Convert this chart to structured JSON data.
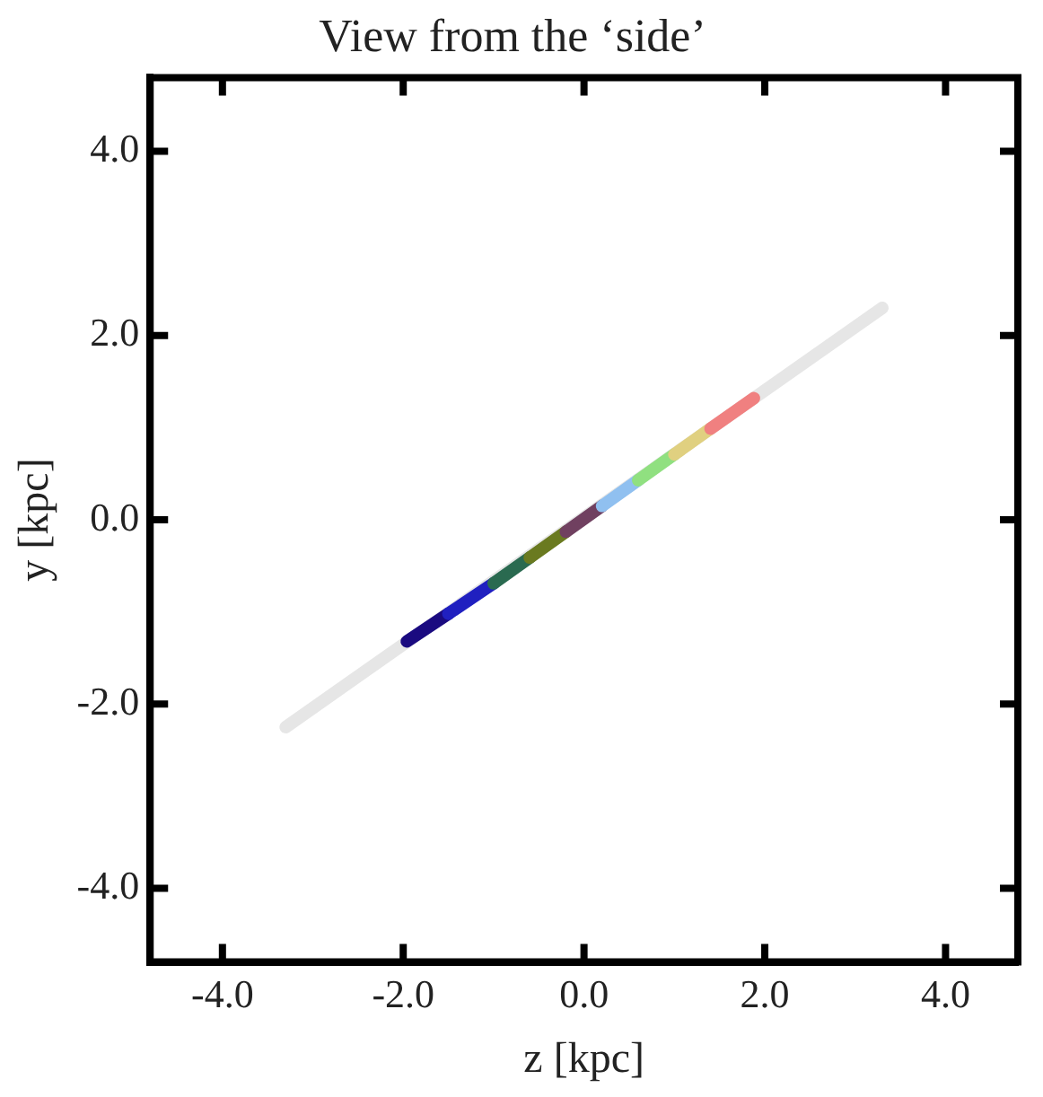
{
  "chart_data": {
    "type": "line",
    "title": "View from the ‘side’",
    "xlabel": "z [kpc]",
    "ylabel": "y [kpc]",
    "xlim": [
      -4.8,
      4.8
    ],
    "ylim": [
      -4.8,
      4.8
    ],
    "xticks": [
      {
        "value": -4,
        "label": "-4.0"
      },
      {
        "value": -2,
        "label": "-2.0"
      },
      {
        "value": 0,
        "label": "0.0"
      },
      {
        "value": 2,
        "label": "2.0"
      },
      {
        "value": 4,
        "label": "4.0"
      }
    ],
    "yticks": [
      {
        "value": -4,
        "label": "-4.0"
      },
      {
        "value": -2,
        "label": "-2.0"
      },
      {
        "value": 0,
        "label": "0.0"
      },
      {
        "value": 2,
        "label": "2.0"
      },
      {
        "value": 4,
        "label": "4.0"
      }
    ],
    "series": [
      {
        "color": "#e6e6e6",
        "x": [
          -3.3,
          3.3
        ],
        "values": [
          -2.25,
          2.3
        ]
      },
      {
        "color": "#1a0a80",
        "x": [
          -1.96,
          -1.5
        ],
        "values": [
          -1.32,
          -1.02
        ]
      },
      {
        "color": "#2020c0",
        "x": [
          -1.5,
          -1.0
        ],
        "values": [
          -1.02,
          -0.69
        ]
      },
      {
        "color": "#2a6a50",
        "x": [
          -1.0,
          -0.6
        ],
        "values": [
          -0.69,
          -0.41
        ]
      },
      {
        "color": "#6a7a20",
        "x": [
          -0.6,
          -0.2
        ],
        "values": [
          -0.41,
          -0.13
        ]
      },
      {
        "color": "#704060",
        "x": [
          -0.2,
          0.2
        ],
        "values": [
          -0.13,
          0.15
        ]
      },
      {
        "color": "#90c0f0",
        "x": [
          0.2,
          0.6
        ],
        "values": [
          0.15,
          0.43
        ]
      },
      {
        "color": "#90e080",
        "x": [
          0.6,
          1.0
        ],
        "values": [
          0.43,
          0.71
        ]
      },
      {
        "color": "#e0d080",
        "x": [
          1.0,
          1.4
        ],
        "values": [
          0.71,
          0.99
        ]
      },
      {
        "color": "#f08080",
        "x": [
          1.4,
          1.88
        ],
        "values": [
          0.99,
          1.32
        ]
      }
    ]
  }
}
